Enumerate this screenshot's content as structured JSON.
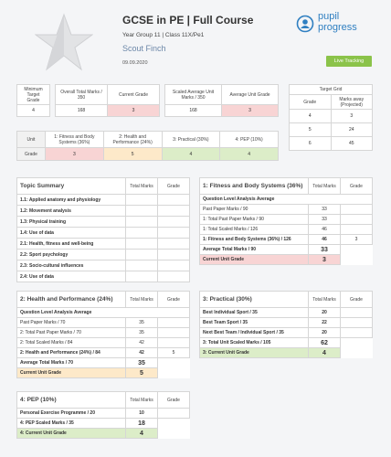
{
  "header": {
    "title": "GCSE in PE | Full Course",
    "subtitle": "Year Group 11 | Class 11X/Pe1",
    "student": "Scout Finch",
    "date": "09.09.2020",
    "logo_top": "pupil",
    "logo_bottom": "progress",
    "button": "Live Tracking"
  },
  "overview": {
    "minimum_target": {
      "label": "Minimum Target Grade",
      "value": "4"
    },
    "overall": {
      "headers": [
        "Overall Total Marks / 350",
        "Current Grade"
      ],
      "values": [
        "168",
        "3"
      ]
    },
    "scaled": {
      "headers": [
        "Scaled Average Unit Marks / 350",
        "Average Unit Grade"
      ],
      "values": [
        "168",
        "3"
      ]
    },
    "target_grid": {
      "title": "Target Grid",
      "headers": [
        "Grade",
        "Marks away (Projected)"
      ],
      "rows": [
        [
          "4",
          "3"
        ],
        [
          "5",
          "24"
        ],
        [
          "6",
          "45"
        ]
      ]
    },
    "units": {
      "row_headers": [
        "Unit",
        "Grade"
      ],
      "names": [
        "1: Fitness and Body Systems (36%)",
        "2: Health and Performance (24%)",
        "3: Practical (30%)",
        "4: PEP (10%)"
      ],
      "grades": [
        "3",
        "5",
        "4",
        "4"
      ]
    }
  },
  "topic_summary": {
    "headers": [
      "Topic Summary",
      "Total Marks",
      "Grade"
    ],
    "topics": [
      "1.1: Applied anatomy and physiology",
      "1.2: Movement analysis",
      "1.3: Physical training",
      "1.4: Use of data",
      "2.1: Health, fitness and well-being",
      "2.2: Sport psychology",
      "2.3: Socio-cultural influences",
      "2.4: Use of data"
    ]
  },
  "sections": [
    {
      "title": "1: Fitness and Body Systems (36%)",
      "headers": [
        "Total Marks",
        "Grade"
      ],
      "subheader": "Question Level Analysis Average",
      "rows": [
        [
          "Past Paper Marks / 90",
          "33"
        ],
        [
          "1: Total Past Paper Marks / 90",
          "33"
        ],
        [
          "1: Total Scaled Marks / 126",
          "46"
        ],
        [
          "1: Fitness and Body Systems (36%) / 126",
          "46",
          "3"
        ]
      ],
      "totals": [
        [
          "Average Total Marks / 90",
          "33"
        ],
        [
          "Current Unit Grade",
          "3"
        ]
      ]
    },
    {
      "title": "2: Health and Performance (24%)",
      "headers": [
        "Total Marks",
        "Grade"
      ],
      "subheader": "Question Level Analysis Average",
      "rows": [
        [
          "Past Paper Marks / 70",
          "35"
        ],
        [
          "2: Total Past Paper Marks / 70",
          "35"
        ],
        [
          "2: Total Scaled Marks / 84",
          "42"
        ],
        [
          "2: Health and Performance (24%) / 84",
          "42",
          "5"
        ]
      ],
      "totals": [
        [
          "Average Total Marks / 70",
          "35"
        ],
        [
          "Current Unit Grade",
          "5"
        ]
      ]
    },
    {
      "title": "3: Practical (30%)",
      "headers": [
        "Total Marks",
        "Grade"
      ],
      "rows": [
        [
          "Best Individual Sport / 35",
          "20"
        ],
        [
          "Best Team Sport / 35",
          "22"
        ],
        [
          "Next Best Team / Individual Sport / 35",
          "20"
        ]
      ],
      "totals": [
        [
          "3: Total Unit Scaled Marks / 105",
          "62"
        ],
        [
          "3: Current Unit Grade",
          "4"
        ]
      ]
    },
    {
      "title": "4: PEP (10%)",
      "headers": [
        "Total Marks",
        "Grade"
      ],
      "rows": [
        [
          "Personal Exercise Programme / 20",
          "10"
        ]
      ],
      "totals": [
        [
          "4: PEP Scaled Marks / 35",
          "18"
        ],
        [
          "4: Current Unit Grade",
          "4"
        ]
      ]
    }
  ]
}
